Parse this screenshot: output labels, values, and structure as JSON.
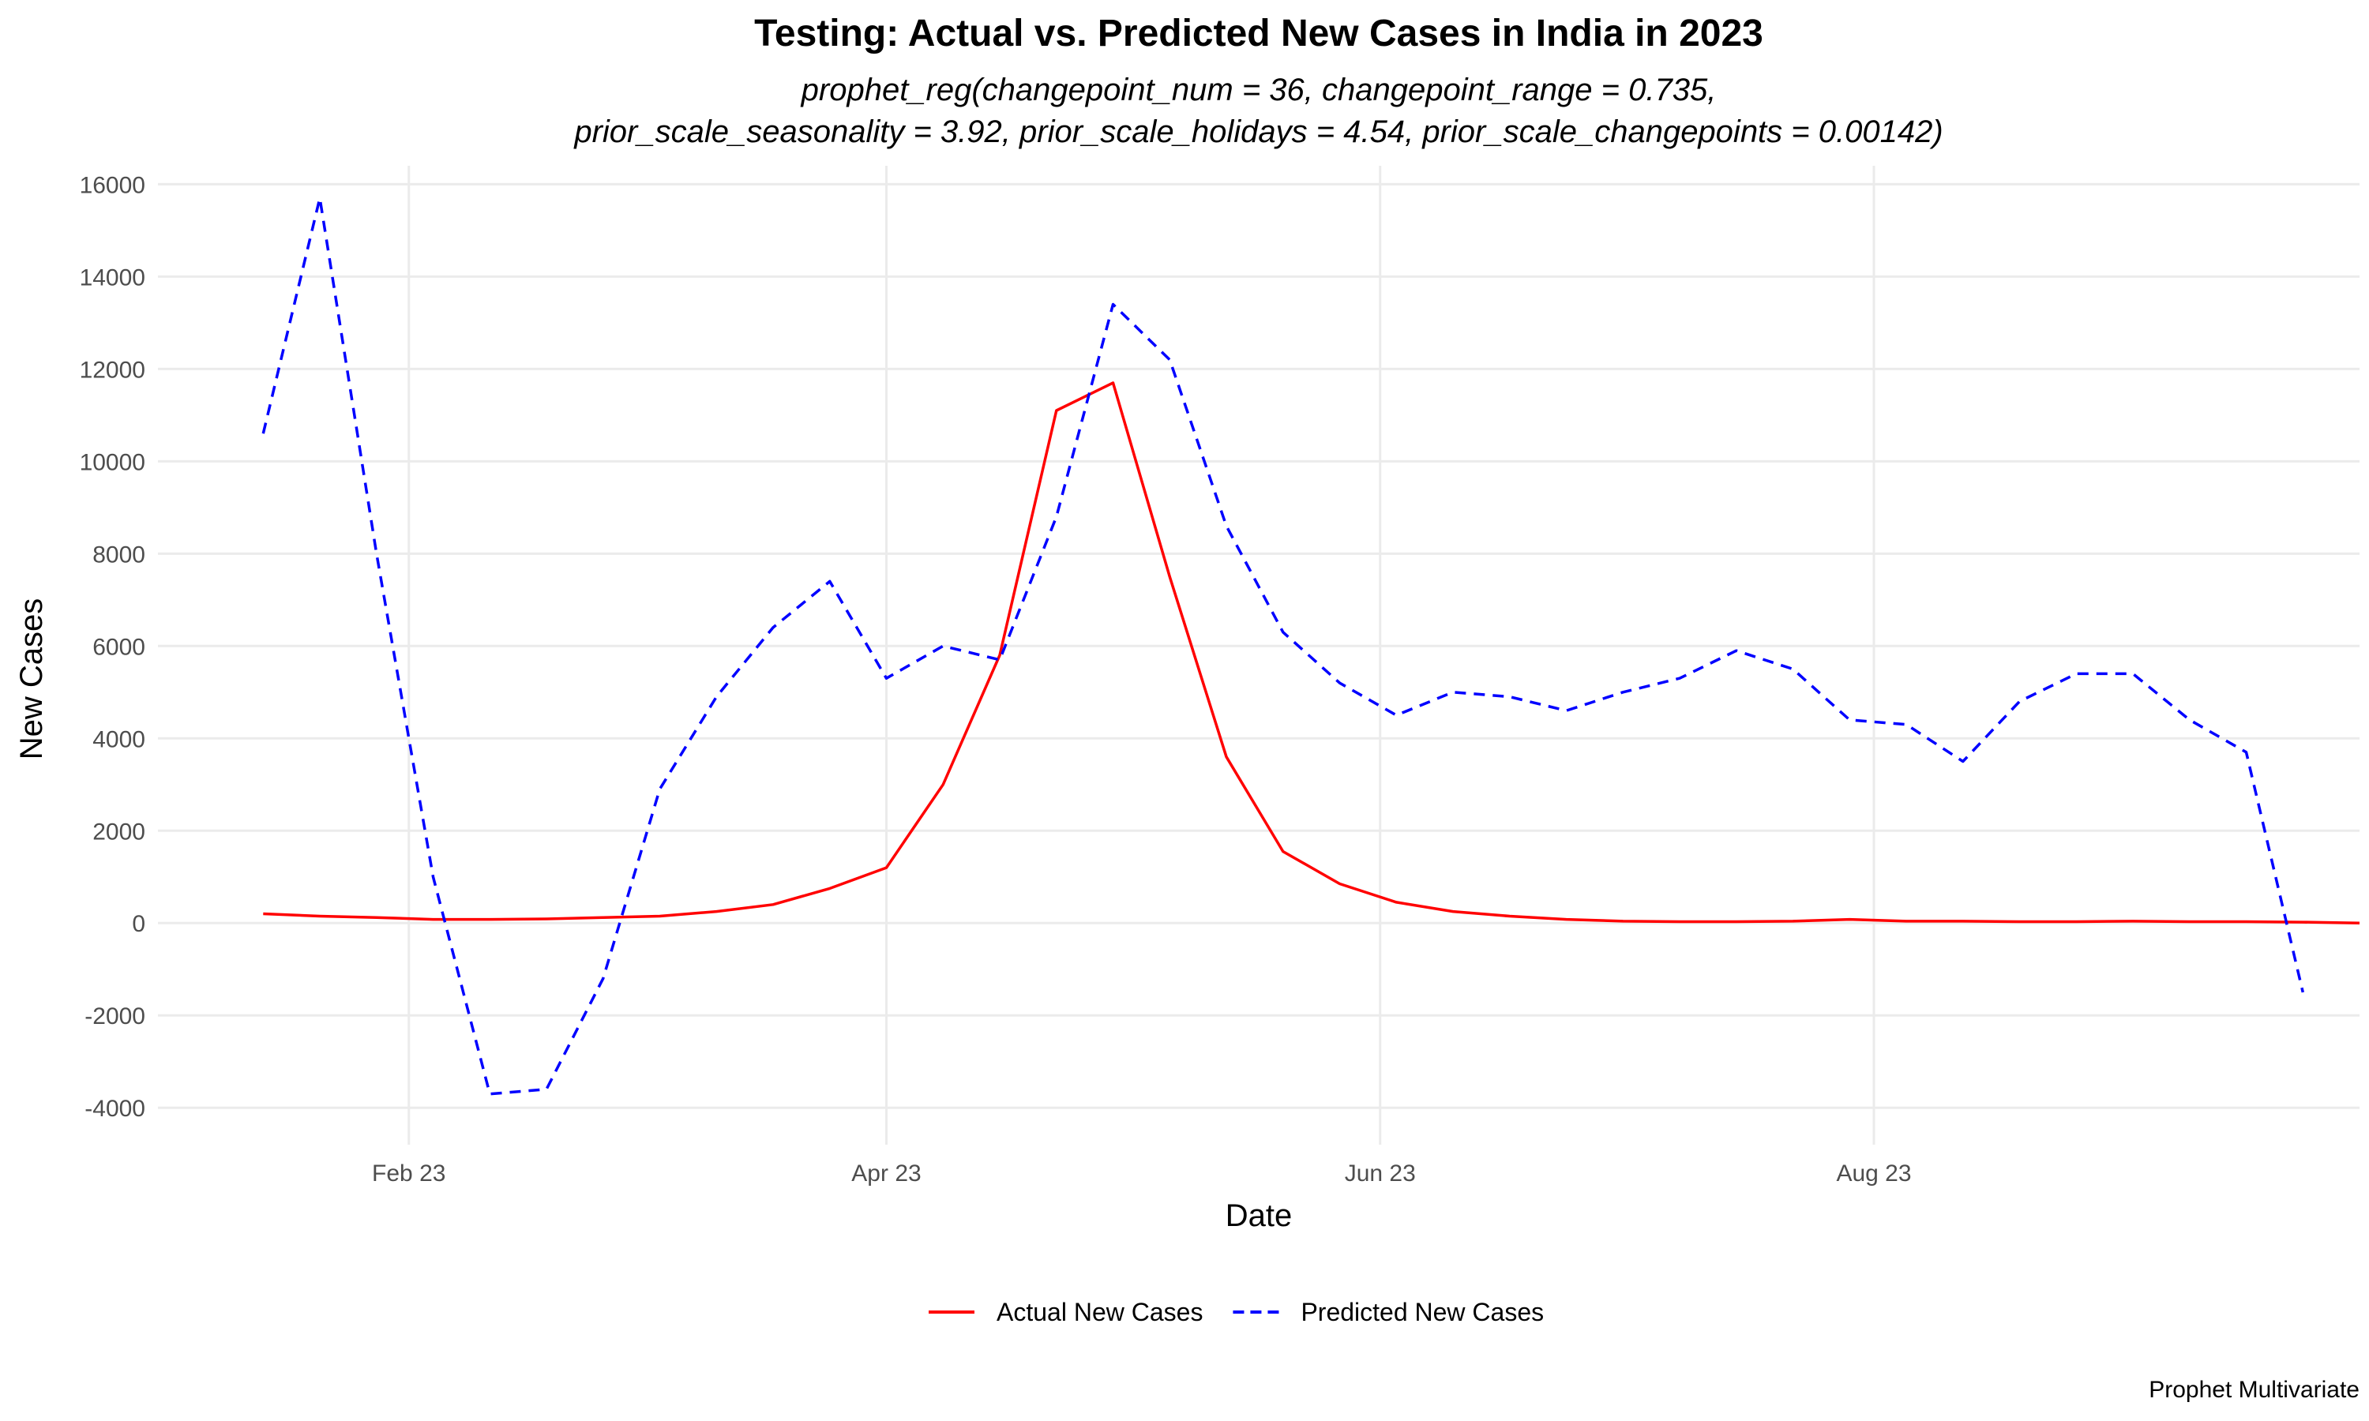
{
  "chart_data": {
    "type": "line",
    "title": "Testing: Actual vs. Predicted New Cases in India in 2023",
    "subtitle_lines": [
      "prophet_reg(changepoint_num = 36, changepoint_range = 0.735,",
      "prior_scale_seasonality = 3.92, prior_scale_holidays = 4.54, prior_scale_changepoints = 0.00142)"
    ],
    "xlabel": "Date",
    "ylabel": "New Cases",
    "caption": "Prophet Multivariate",
    "x_ticks": [
      {
        "date": "2023-02-01",
        "label": "Feb 23"
      },
      {
        "date": "2023-04-01",
        "label": "Apr 23"
      },
      {
        "date": "2023-06-01",
        "label": "Jun 23"
      },
      {
        "date": "2023-08-01",
        "label": "Aug 23"
      }
    ],
    "xlim": [
      "2023-01-01",
      "2023-09-30"
    ],
    "y_ticks": [
      -4000,
      -2000,
      0,
      2000,
      4000,
      6000,
      8000,
      10000,
      12000,
      14000,
      16000
    ],
    "ylim": [
      -4800,
      16400
    ],
    "legend_position": "bottom",
    "x": [
      "2023-01-14",
      "2023-01-21",
      "2023-01-28",
      "2023-02-04",
      "2023-02-11",
      "2023-02-18",
      "2023-02-25",
      "2023-03-04",
      "2023-03-11",
      "2023-03-18",
      "2023-03-25",
      "2023-04-01",
      "2023-04-08",
      "2023-04-15",
      "2023-04-22",
      "2023-04-29",
      "2023-05-06",
      "2023-05-13",
      "2023-05-20",
      "2023-05-27",
      "2023-06-03",
      "2023-06-10",
      "2023-06-17",
      "2023-06-24",
      "2023-07-01",
      "2023-07-08",
      "2023-07-15",
      "2023-07-22",
      "2023-07-29",
      "2023-08-05",
      "2023-08-12",
      "2023-08-19",
      "2023-08-26",
      "2023-09-02",
      "2023-09-09",
      "2023-09-16",
      "2023-09-23",
      "2023-09-30"
    ],
    "series": [
      {
        "name": "Actual New Cases",
        "color": "#ff0000",
        "dash": "solid",
        "values": [
          200,
          150,
          120,
          80,
          80,
          90,
          120,
          150,
          250,
          400,
          750,
          1200,
          3000,
          5800,
          11100,
          11700,
          7500,
          3600,
          1550,
          850,
          450,
          250,
          150,
          80,
          40,
          30,
          30,
          40,
          80,
          40,
          40,
          30,
          30,
          40,
          30,
          30,
          20,
          0
        ]
      },
      {
        "name": "Predicted New Cases",
        "color": "#0000ff",
        "dash": "dashed",
        "values": [
          10600,
          15700,
          8000,
          1000,
          -3700,
          -3600,
          -1200,
          2900,
          4900,
          6400,
          7400,
          5300,
          6000,
          5700,
          8800,
          13400,
          12200,
          8600,
          6300,
          5200,
          4500,
          5000,
          4900,
          4600,
          5000,
          5300,
          5900,
          5500,
          4400,
          4300,
          3500,
          4800,
          5400,
          5400,
          4400,
          3700,
          -1500,
          null
        ]
      }
    ]
  }
}
